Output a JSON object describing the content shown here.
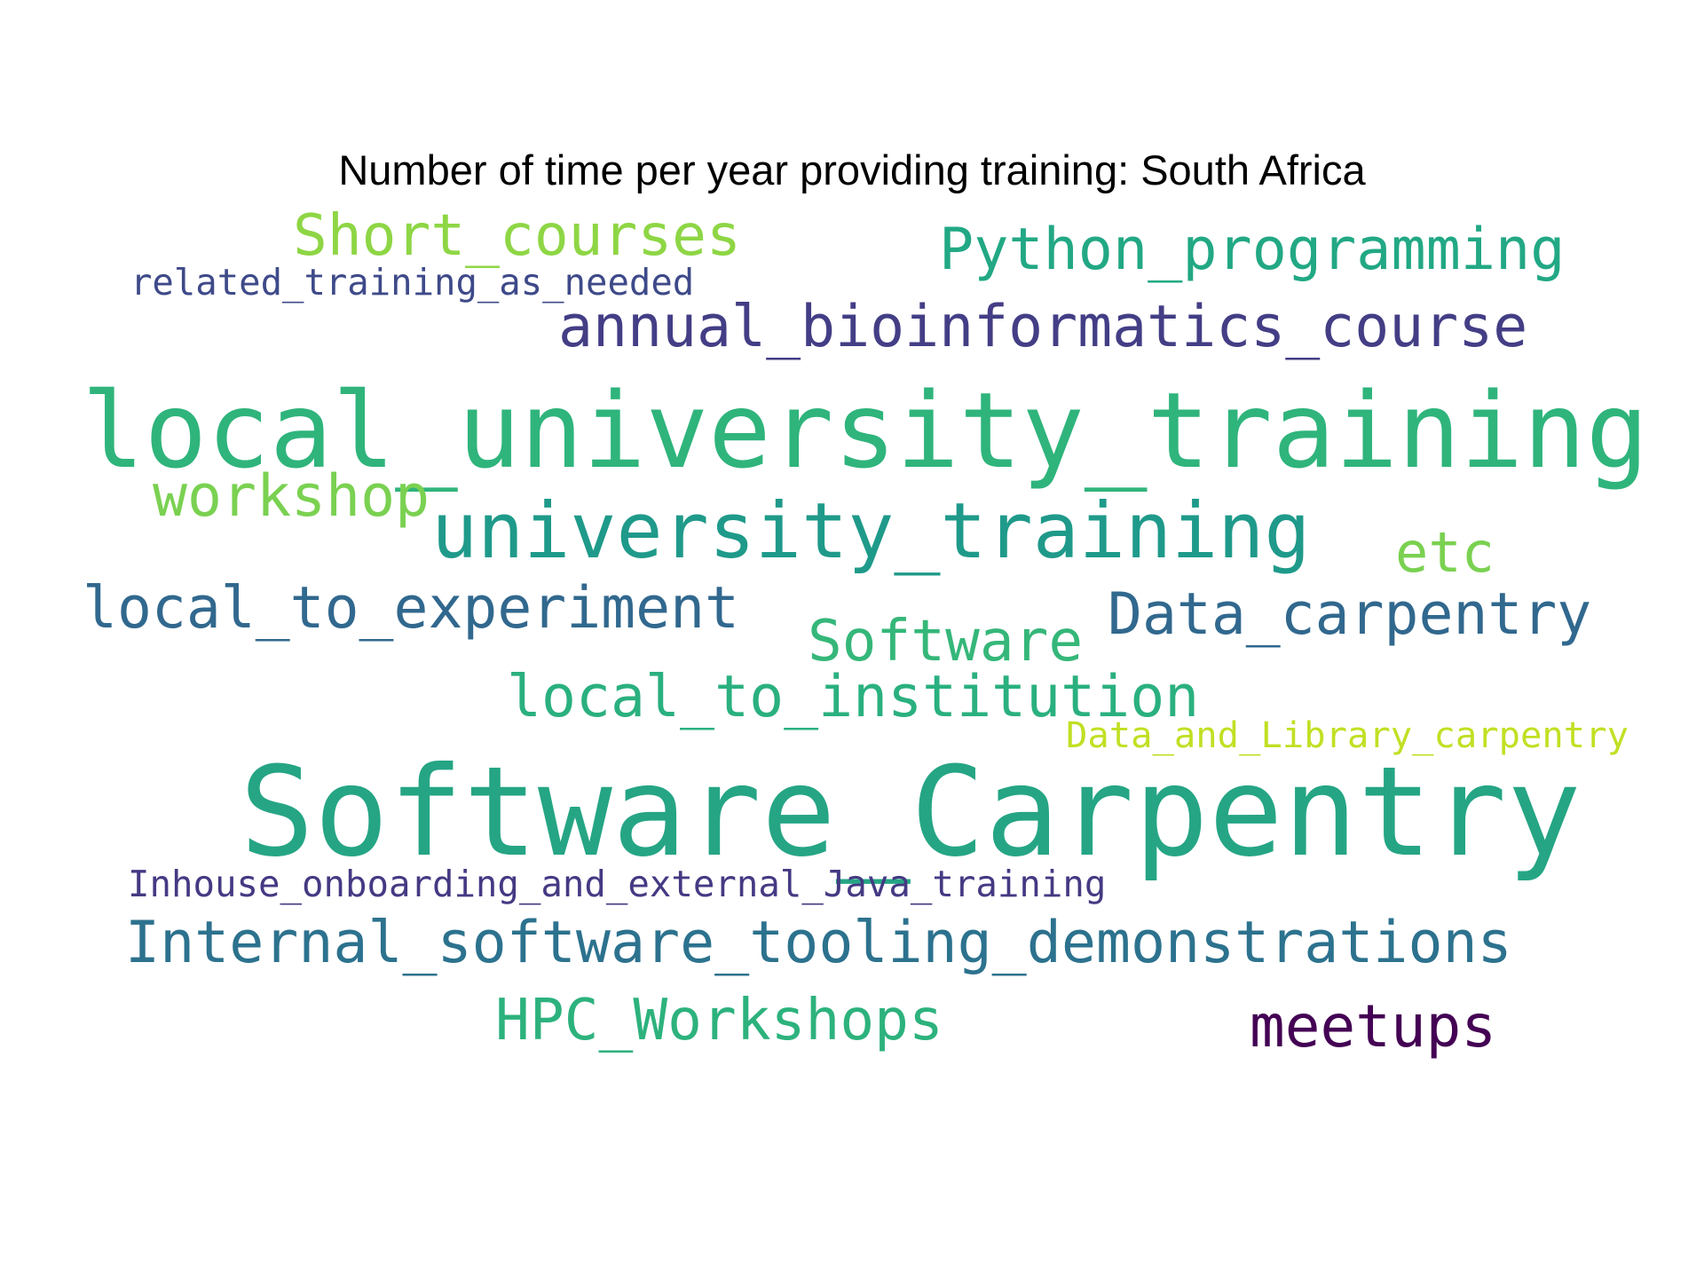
{
  "title": "Number of time per year providing training: South Africa",
  "words": [
    {
      "text": "Short_courses",
      "color": "#8ed645"
    },
    {
      "text": "Python_programming",
      "color": "#22a884"
    },
    {
      "text": "related_training_as_needed",
      "color": "#3e4a89"
    },
    {
      "text": "annual_bioinformatics_course",
      "color": "#433e85"
    },
    {
      "text": "local_university_training",
      "color": "#2fb47c"
    },
    {
      "text": "workshop",
      "color": "#7ad151"
    },
    {
      "text": "university_training",
      "color": "#1f9a8a"
    },
    {
      "text": "etc",
      "color": "#7ad151"
    },
    {
      "text": "local_to_experiment",
      "color": "#31688e"
    },
    {
      "text": "Software",
      "color": "#35b779"
    },
    {
      "text": "Data_carpentry",
      "color": "#31688e"
    },
    {
      "text": "local_to_institution",
      "color": "#2ab07f"
    },
    {
      "text": "Data_and_Library_carpentry",
      "color": "#c2df23"
    },
    {
      "text": "Software_Carpentry",
      "color": "#25a584"
    },
    {
      "text": "Inhouse_onboarding_and_external_Java_training",
      "color": "#443a83"
    },
    {
      "text": "Internal_software_tooling_demonstrations",
      "color": "#2c728e"
    },
    {
      "text": "HPC_Workshops",
      "color": "#2db27d"
    },
    {
      "text": "meetups",
      "color": "#440154"
    }
  ]
}
